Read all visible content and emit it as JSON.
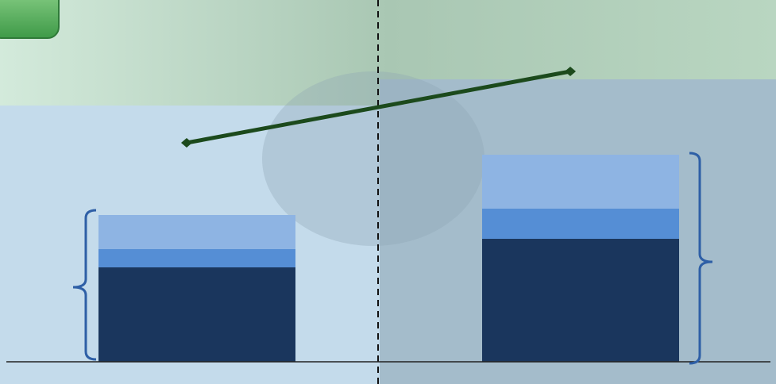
{
  "chart_data": {
    "type": "bar",
    "stacked": true,
    "categories": [
      null,
      null
    ],
    "series": [
      {
        "color": "#1a365d",
        "values": [
          119,
          155
        ]
      },
      {
        "color": "#558ed5",
        "values": [
          23,
          38
        ]
      },
      {
        "color": "#8eb4e3",
        "values": [
          43,
          68
        ]
      },
      {
        "type": "line",
        "color": "#1c4a1c",
        "values": [
          276,
          366
        ]
      }
    ],
    "ylim": [
      0,
      456
    ]
  }
}
